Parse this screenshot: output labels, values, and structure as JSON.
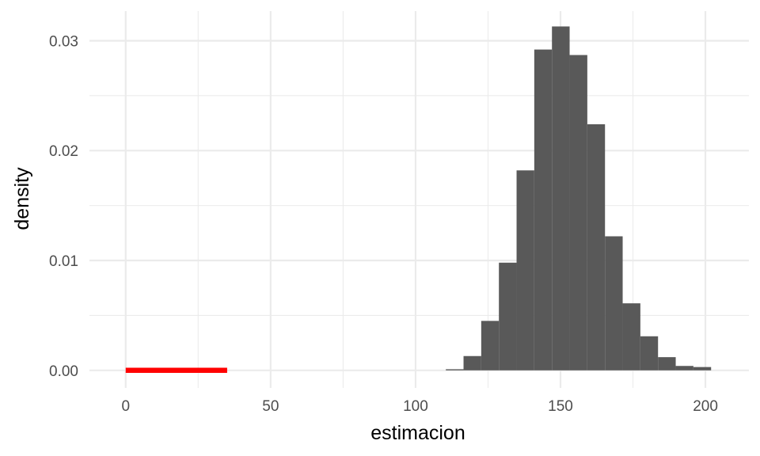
{
  "chart_data": {
    "type": "bar",
    "xlabel": "estimacion",
    "ylabel": "density",
    "xlim": [
      -12.5,
      215
    ],
    "ylim": [
      -0.0016,
      0.0327
    ],
    "x_ticks": [
      0,
      50,
      100,
      150,
      200
    ],
    "x_tick_labels": [
      "0",
      "50",
      "100",
      "150",
      "200"
    ],
    "y_ticks": [
      0.0,
      0.01,
      0.02,
      0.03
    ],
    "y_tick_labels": [
      "0.00",
      "0.01",
      "0.02",
      "0.03"
    ],
    "x_minor_ticks": [
      25,
      75,
      125,
      175
    ],
    "y_minor_ticks": [
      0.005,
      0.015,
      0.025
    ],
    "grid": true,
    "bin_width": 6.1,
    "bins": [
      {
        "x": 113.5,
        "density": 0.0001
      },
      {
        "x": 119.6,
        "density": 0.0013
      },
      {
        "x": 125.7,
        "density": 0.0045
      },
      {
        "x": 131.8,
        "density": 0.0098
      },
      {
        "x": 137.9,
        "density": 0.0182
      },
      {
        "x": 144.0,
        "density": 0.0292
      },
      {
        "x": 150.1,
        "density": 0.0313
      },
      {
        "x": 156.2,
        "density": 0.0287
      },
      {
        "x": 162.3,
        "density": 0.0224
      },
      {
        "x": 168.4,
        "density": 0.0122
      },
      {
        "x": 174.5,
        "density": 0.0061
      },
      {
        "x": 180.6,
        "density": 0.0031
      },
      {
        "x": 186.7,
        "density": 0.0012
      },
      {
        "x": 192.8,
        "density": 0.0004
      },
      {
        "x": 198.9,
        "density": 0.0003
      }
    ],
    "bar_color": "#595959",
    "segment": {
      "x_start": 0,
      "x_end": 35,
      "y": 0,
      "color": "#ff0000"
    },
    "grid_color": "#ebebeb"
  }
}
